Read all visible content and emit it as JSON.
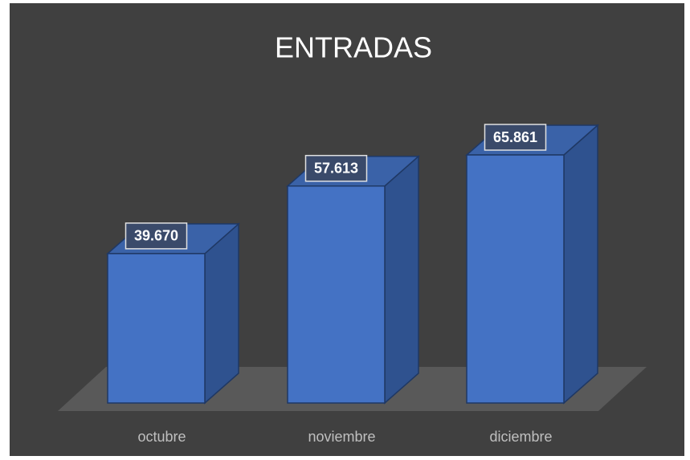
{
  "chart_data": {
    "type": "bar3d",
    "title": "ENTRADAS",
    "categories": [
      "octubre",
      "noviembre",
      "diciembre"
    ],
    "values": [
      39670,
      57613,
      65861
    ],
    "value_labels": [
      "39.670",
      "57.613",
      "65.861"
    ],
    "color": "#4472c4"
  }
}
